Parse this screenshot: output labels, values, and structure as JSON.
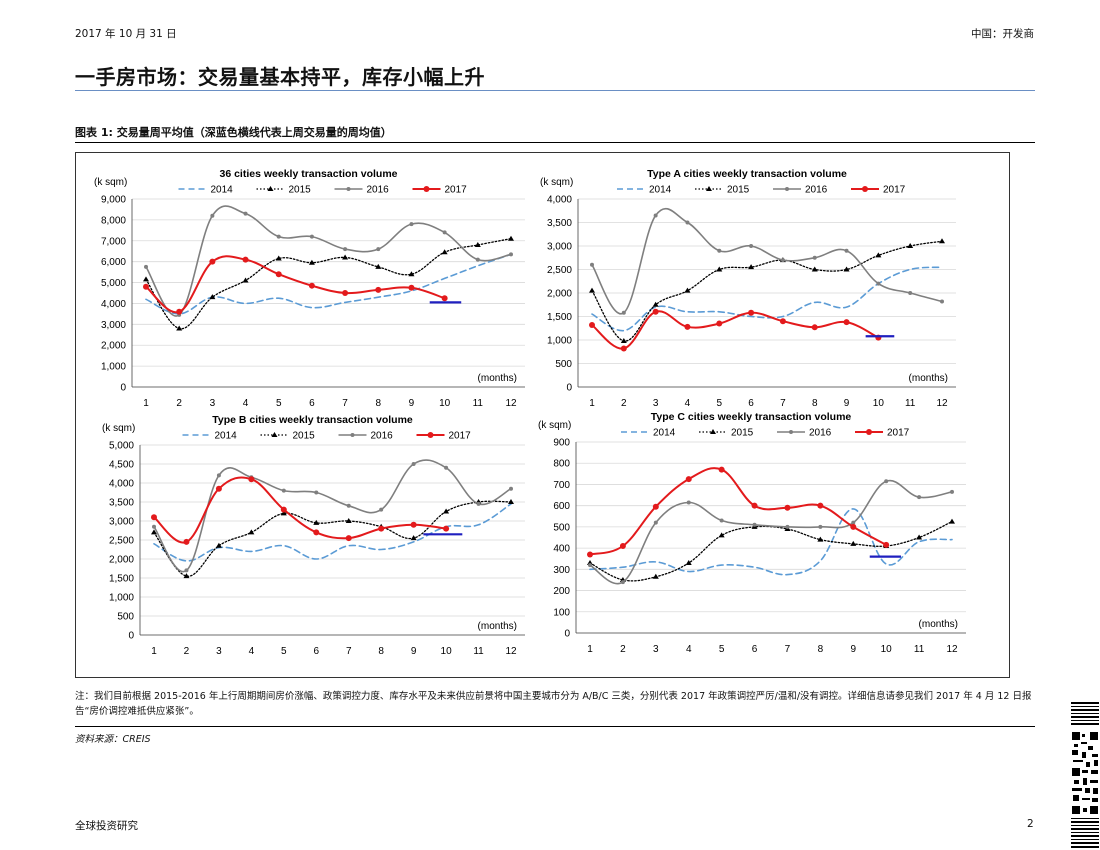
{
  "header": {
    "date": "2017 年 10 月 31 日",
    "section": "中国：开发商"
  },
  "page_title": "一手房市场：交易量基本持平，库存小幅上升",
  "figure_title": "图表 1: 交易量周平均值（深蓝色横线代表上周交易量的周均值）",
  "note": "注：我们目前根据 2015-2016 年上行周期期间房价涨幅、政策调控力度、库存水平及未来供应前景将中国主要城市分为 A/B/C 三类，分别代表 2017 年政策调控严厉/温和/没有调控。详细信息请参见我们 2017 年 4 月 12 日报告“房价调控难抵供应紧张”。",
  "source": "资料来源：CREIS",
  "footer": {
    "left": "全球投资研究",
    "page": "2"
  },
  "colors": {
    "2014": "#5b9bd5",
    "2015": "#000000",
    "2016": "#7f7f7f",
    "2017": "#e31a1c",
    "last_week": "#1f1fbf",
    "rule": "#6a8fc4"
  },
  "chart_data": [
    {
      "type": "line",
      "title": "36 cities weekly transaction volume",
      "ylabel": "(k sqm)",
      "xlabel": "(months)",
      "categories": [
        "1",
        "2",
        "3",
        "4",
        "5",
        "6",
        "7",
        "8",
        "9",
        "10",
        "11",
        "12"
      ],
      "ylim": [
        0,
        9000
      ],
      "yticks": [
        "0",
        "1,000",
        "2,000",
        "3,000",
        "4,000",
        "5,000",
        "6,000",
        "7,000",
        "8,000",
        "9,000"
      ],
      "grid": true,
      "legend": [
        "2014",
        "2015",
        "2016",
        "2017"
      ],
      "series": [
        {
          "name": "2014",
          "x": [
            1,
            2,
            3,
            4,
            5,
            6,
            7,
            8,
            9,
            10,
            11,
            12
          ],
          "values": [
            4200,
            3500,
            4300,
            4000,
            4250,
            3800,
            4050,
            4300,
            4600,
            5200,
            5800,
            6350
          ]
        },
        {
          "name": "2015",
          "x": [
            1,
            2,
            3,
            4,
            5,
            6,
            7,
            8,
            9,
            10,
            11,
            12
          ],
          "values": [
            5150,
            2800,
            4300,
            5100,
            6150,
            5950,
            6200,
            5750,
            5400,
            6450,
            6800,
            7100
          ]
        },
        {
          "name": "2016",
          "x": [
            1,
            2,
            3,
            4,
            5,
            6,
            7,
            8,
            9,
            10,
            11,
            12
          ],
          "values": [
            5750,
            3450,
            8200,
            8300,
            7200,
            7200,
            6600,
            6600,
            7800,
            7400,
            6100,
            6350
          ]
        },
        {
          "name": "2017",
          "x": [
            1,
            2,
            3,
            4,
            5,
            6,
            7,
            8,
            9,
            10
          ],
          "values": [
            4800,
            3600,
            6000,
            6100,
            5400,
            4850,
            4500,
            4650,
            4750,
            4250
          ]
        }
      ],
      "last_week_avg": {
        "value": 4050,
        "x_from": 9.55,
        "x_to": 10.5
      }
    },
    {
      "type": "line",
      "title": "Type A cities weekly transaction volume",
      "ylabel": "(k sqm)",
      "xlabel": "(months)",
      "categories": [
        "1",
        "2",
        "3",
        "4",
        "5",
        "6",
        "7",
        "8",
        "9",
        "10",
        "11",
        "12"
      ],
      "ylim": [
        0,
        4000
      ],
      "yticks": [
        "0",
        "500",
        "1,000",
        "1,500",
        "2,000",
        "2,500",
        "3,000",
        "3,500",
        "4,000"
      ],
      "grid": true,
      "legend": [
        "2014",
        "2015",
        "2016",
        "2017"
      ],
      "series": [
        {
          "name": "2014",
          "x": [
            1,
            2,
            3,
            4,
            5,
            6,
            7,
            8,
            9,
            10,
            11,
            12
          ],
          "values": [
            1550,
            1200,
            1700,
            1600,
            1600,
            1500,
            1500,
            1800,
            1700,
            2200,
            2500,
            2550
          ]
        },
        {
          "name": "2015",
          "x": [
            1,
            2,
            3,
            4,
            5,
            6,
            7,
            8,
            9,
            10,
            11,
            12
          ],
          "values": [
            2050,
            980,
            1750,
            2050,
            2500,
            2550,
            2700,
            2500,
            2500,
            2800,
            3000,
            3100
          ]
        },
        {
          "name": "2016",
          "x": [
            1,
            2,
            3,
            4,
            5,
            6,
            7,
            8,
            9,
            10,
            11,
            12
          ],
          "values": [
            2600,
            1580,
            3650,
            3500,
            2900,
            3000,
            2700,
            2750,
            2900,
            2200,
            2000,
            1820
          ]
        },
        {
          "name": "2017",
          "x": [
            1,
            2,
            3,
            4,
            5,
            6,
            7,
            8,
            9,
            10
          ],
          "values": [
            1320,
            820,
            1600,
            1280,
            1350,
            1580,
            1400,
            1270,
            1380,
            1050
          ]
        }
      ],
      "last_week_avg": {
        "value": 1080,
        "x_from": 9.6,
        "x_to": 10.5
      }
    },
    {
      "type": "line",
      "title": "Type B cities weekly transaction volume",
      "ylabel": "(k sqm)",
      "xlabel": "(months)",
      "categories": [
        "1",
        "2",
        "3",
        "4",
        "5",
        "6",
        "7",
        "8",
        "9",
        "10",
        "11",
        "12"
      ],
      "ylim": [
        0,
        5000
      ],
      "yticks": [
        "0",
        "500",
        "1,000",
        "1,500",
        "2,000",
        "2,500",
        "3,000",
        "3,500",
        "4,000",
        "4,500",
        "5,000"
      ],
      "grid": true,
      "legend": [
        "2014",
        "2015",
        "2016",
        "2017"
      ],
      "series": [
        {
          "name": "2014",
          "x": [
            1,
            2,
            3,
            4,
            5,
            6,
            7,
            8,
            9,
            10,
            11,
            12
          ],
          "values": [
            2400,
            1950,
            2300,
            2200,
            2350,
            2000,
            2350,
            2250,
            2450,
            2850,
            2900,
            3450
          ]
        },
        {
          "name": "2015",
          "x": [
            1,
            2,
            3,
            4,
            5,
            6,
            7,
            8,
            9,
            10,
            11,
            12
          ],
          "values": [
            2700,
            1550,
            2350,
            2700,
            3200,
            2950,
            3000,
            2850,
            2550,
            3250,
            3500,
            3500
          ]
        },
        {
          "name": "2016",
          "x": [
            1,
            2,
            3,
            4,
            5,
            6,
            7,
            8,
            9,
            10,
            11,
            12
          ],
          "values": [
            2850,
            1700,
            4200,
            4150,
            3800,
            3750,
            3400,
            3300,
            4500,
            4400,
            3450,
            3850
          ]
        },
        {
          "name": "2017",
          "x": [
            1,
            2,
            3,
            4,
            5,
            6,
            7,
            8,
            9,
            10
          ],
          "values": [
            3100,
            2450,
            3850,
            4100,
            3300,
            2700,
            2550,
            2800,
            2900,
            2800
          ]
        }
      ],
      "last_week_avg": {
        "value": 2650,
        "x_from": 9.3,
        "x_to": 10.5
      }
    },
    {
      "type": "line",
      "title": "Type C cities weekly transaction volume",
      "ylabel": "(k sqm)",
      "xlabel": "(months)",
      "categories": [
        "1",
        "2",
        "3",
        "4",
        "5",
        "6",
        "7",
        "8",
        "9",
        "10",
        "11",
        "12"
      ],
      "ylim": [
        0,
        900
      ],
      "yticks": [
        "0",
        "100",
        "200",
        "300",
        "400",
        "500",
        "600",
        "700",
        "800",
        "900"
      ],
      "grid": true,
      "legend": [
        "2014",
        "2015",
        "2016",
        "2017"
      ],
      "series": [
        {
          "name": "2014",
          "x": [
            1,
            2,
            3,
            4,
            5,
            6,
            7,
            8,
            9,
            10,
            11,
            12
          ],
          "values": [
            300,
            310,
            335,
            290,
            320,
            310,
            275,
            340,
            585,
            325,
            430,
            440
          ]
        },
        {
          "name": "2015",
          "x": [
            1,
            2,
            3,
            4,
            5,
            6,
            7,
            8,
            9,
            10,
            11,
            12
          ],
          "values": [
            330,
            250,
            265,
            330,
            460,
            500,
            490,
            440,
            420,
            410,
            450,
            525
          ]
        },
        {
          "name": "2016",
          "x": [
            1,
            2,
            3,
            4,
            5,
            6,
            7,
            8,
            9,
            10,
            11,
            12
          ],
          "values": [
            320,
            240,
            520,
            615,
            530,
            510,
            500,
            500,
            520,
            715,
            640,
            665
          ]
        },
        {
          "name": "2017",
          "x": [
            1,
            2,
            3,
            4,
            5,
            6,
            7,
            8,
            9,
            10
          ],
          "values": [
            370,
            410,
            595,
            725,
            770,
            600,
            590,
            600,
            500,
            415
          ]
        }
      ],
      "last_week_avg": {
        "value": 360,
        "x_from": 9.5,
        "x_to": 10.45
      }
    }
  ]
}
